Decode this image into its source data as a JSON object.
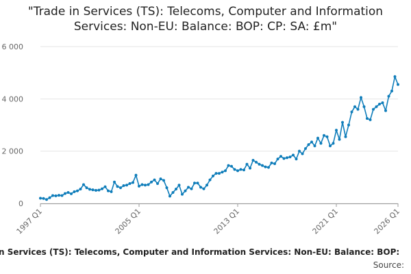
{
  "chart_data": {
    "type": "line",
    "title": "\"Trade in Services (TS): Telecoms, Computer and Information Services: Non-EU: Balance: BOP: CP: SA: £m\"",
    "footer_title": "n Services (TS): Telecoms, Computer and Information Services: Non-EU: Balance: BOP:",
    "source": "Source:",
    "categories": [
      "1997 Q1",
      null,
      null,
      null,
      null,
      null,
      null,
      null,
      null,
      null,
      null,
      null,
      null,
      null,
      null,
      null,
      null,
      null,
      null,
      null,
      null,
      null,
      null,
      null,
      null,
      null,
      null,
      null,
      null,
      null,
      null,
      null,
      "2005 Q1",
      null,
      null,
      null,
      null,
      null,
      null,
      null,
      null,
      null,
      null,
      null,
      null,
      null,
      null,
      null,
      null,
      null,
      null,
      null,
      null,
      null,
      null,
      null,
      null,
      null,
      null,
      null,
      null,
      null,
      null,
      null,
      "2013 Q1",
      null,
      null,
      null,
      null,
      null,
      null,
      null,
      null,
      null,
      null,
      null,
      null,
      null,
      null,
      null,
      null,
      null,
      null,
      null,
      null,
      null,
      null,
      null,
      null,
      null,
      null,
      null,
      null,
      null,
      null,
      null,
      "2021 Q1",
      null,
      null,
      null,
      null,
      null,
      null,
      null,
      null,
      null,
      null,
      null,
      null,
      null,
      null,
      null,
      null,
      null,
      null,
      null,
      "2026 Q1"
    ],
    "series": [
      {
        "color": "#0f7dba",
        "values": [
          200,
          190,
          150,
          220,
          300,
          290,
          310,
          300,
          380,
          420,
          370,
          450,
          480,
          550,
          720,
          600,
          540,
          520,
          500,
          510,
          560,
          640,
          480,
          450,
          820,
          650,
          600,
          680,
          700,
          760,
          800,
          1080,
          660,
          720,
          700,
          720,
          820,
          900,
          760,
          940,
          880,
          600,
          280,
          420,
          550,
          700,
          350,
          480,
          620,
          560,
          780,
          780,
          620,
          560,
          700,
          900,
          1050,
          1150,
          1150,
          1200,
          1250,
          1450,
          1420,
          1300,
          1250,
          1300,
          1280,
          1500,
          1350,
          1650,
          1580,
          1500,
          1450,
          1400,
          1380,
          1550,
          1520,
          1700,
          1800,
          1720,
          1750,
          1780,
          1850,
          1700,
          2000,
          1900,
          2100,
          2250,
          2350,
          2200,
          2500,
          2300,
          2600,
          2550,
          2200,
          2300,
          2800,
          2450,
          3100,
          2550,
          3000,
          3500,
          3700,
          3600,
          4050,
          3700,
          3250,
          3200,
          3600,
          3700,
          3800,
          3850,
          3550,
          4100,
          4300,
          4850,
          4550
        ]
      }
    ],
    "ylim": [
      0,
      6000
    ],
    "yticks": [
      {
        "value": 0,
        "label": "0"
      },
      {
        "value": 2000,
        "label": "2 000"
      },
      {
        "value": 4000,
        "label": "4 000"
      },
      {
        "value": 6000,
        "label": "6 000"
      }
    ],
    "grid": true
  }
}
